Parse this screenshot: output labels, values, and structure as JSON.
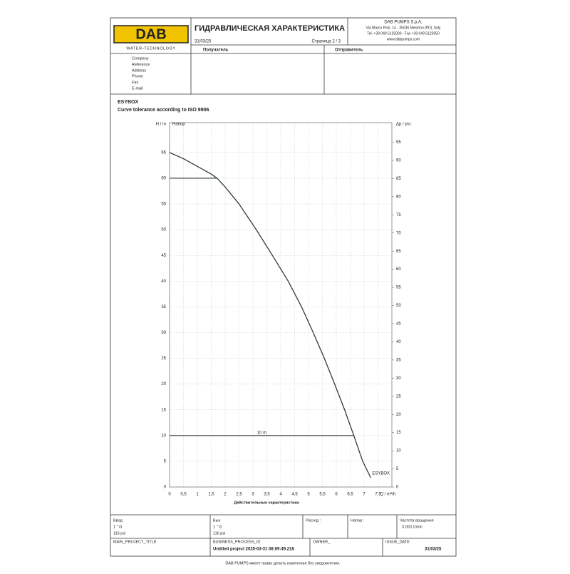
{
  "header": {
    "logo": "DAB",
    "logo_sub": "WATER•TECHNOLOGY",
    "title": "ГИДРАВЛИЧЕСКАЯ ХАРАКТЕРИСТИКА",
    "date": "31/03/25",
    "page": "Страница 2 / 3",
    "company": [
      "DAB PUMPS S.p.A.",
      "Via Marco Polo, 14 - 35035 Mestrino (PD), Italy",
      "Tel. +39 049 5125000 - Fax +39 049 5125950",
      "www.dabpumps.com"
    ],
    "recipient": "Получатель",
    "sender": "Отправитель"
  },
  "fields": [
    "Company",
    "Reference",
    "Address",
    "Phone",
    "Fax",
    "E-mail"
  ],
  "product": "ESYBOX",
  "subtitle": "Curve tolerance according to ISO 9906",
  "chart_data": {
    "type": "line",
    "ylabel": "H / m",
    "ylabel_inner": "Напор",
    "y2label": "Δp / psi",
    "xlabel": "Q / m³/h",
    "xcaption": "Действительные характеристики",
    "xlim": [
      0,
      8
    ],
    "ylim": [
      0,
      70.8
    ],
    "y2lim": [
      0,
      100.4
    ],
    "xticks": [
      0,
      {
        "value": 0.5,
        "label": "0,5"
      },
      1,
      {
        "value": 1.5,
        "label": "1,5"
      },
      2,
      {
        "value": 2.5,
        "label": "2,5"
      },
      3,
      {
        "value": 3.5,
        "label": "3,5"
      },
      4,
      {
        "value": 4.5,
        "label": "4,5"
      },
      5,
      {
        "value": 5.5,
        "label": "5,5"
      },
      6,
      {
        "value": 6.5,
        "label": "6,5"
      },
      7,
      {
        "value": 7.5,
        "label": "7,5"
      }
    ],
    "yticks": [
      0,
      5,
      10,
      15,
      20,
      25,
      30,
      35,
      40,
      45,
      50,
      55,
      60,
      65
    ],
    "y2ticks": [
      0,
      5,
      10,
      15,
      20,
      25,
      30,
      35,
      40,
      45,
      50,
      55,
      60,
      65,
      70,
      75,
      80,
      85,
      90,
      95
    ],
    "grid": true,
    "series": [
      {
        "name": "ESYBOX",
        "color": "#2f3a40",
        "x": [
          0,
          0.5,
          1,
          1.5,
          1.71,
          2,
          2.5,
          3.12,
          3.7,
          4.27,
          4.75,
          5.17,
          5.57,
          5.94,
          6.3,
          6.63,
          6.95,
          7.24
        ],
        "values": [
          65,
          63.8,
          62.3,
          60.8,
          60,
          58.3,
          55,
          50,
          45,
          40,
          35,
          30,
          25,
          20,
          15,
          10,
          5,
          1.8
        ]
      }
    ],
    "hlines": [
      {
        "y": 60,
        "x": [
          0,
          1.71
        ]
      },
      {
        "y": 10,
        "x": [
          0,
          6.63
        ],
        "label": "10 m"
      }
    ]
  },
  "specs": [
    {
      "label": "Ввод",
      "lines": [
        "1 \" G",
        "116 psi"
      ]
    },
    {
      "label": "Вых",
      "lines": [
        "1 \" G",
        "116 psi"
      ]
    },
    {
      "label": "Расход :",
      "lines": []
    },
    {
      "label": "Напор :",
      "lines": []
    },
    {
      "label": "Частота вращения",
      "lines": [
        "3.000 1/min"
      ]
    }
  ],
  "project": {
    "main_title": "MAIN_PROJECT_TITLE",
    "process_label": "BUSINESS_PROCESS_ID",
    "process_value": "Untitled project 2025-03-31 08:09:49.218",
    "owner": "OWNER_",
    "issue_label": "ISSUE_DATE",
    "issue_value": "31/03/25"
  },
  "footer": "DAB PUMPS имеет право делать изменения без уведомления."
}
